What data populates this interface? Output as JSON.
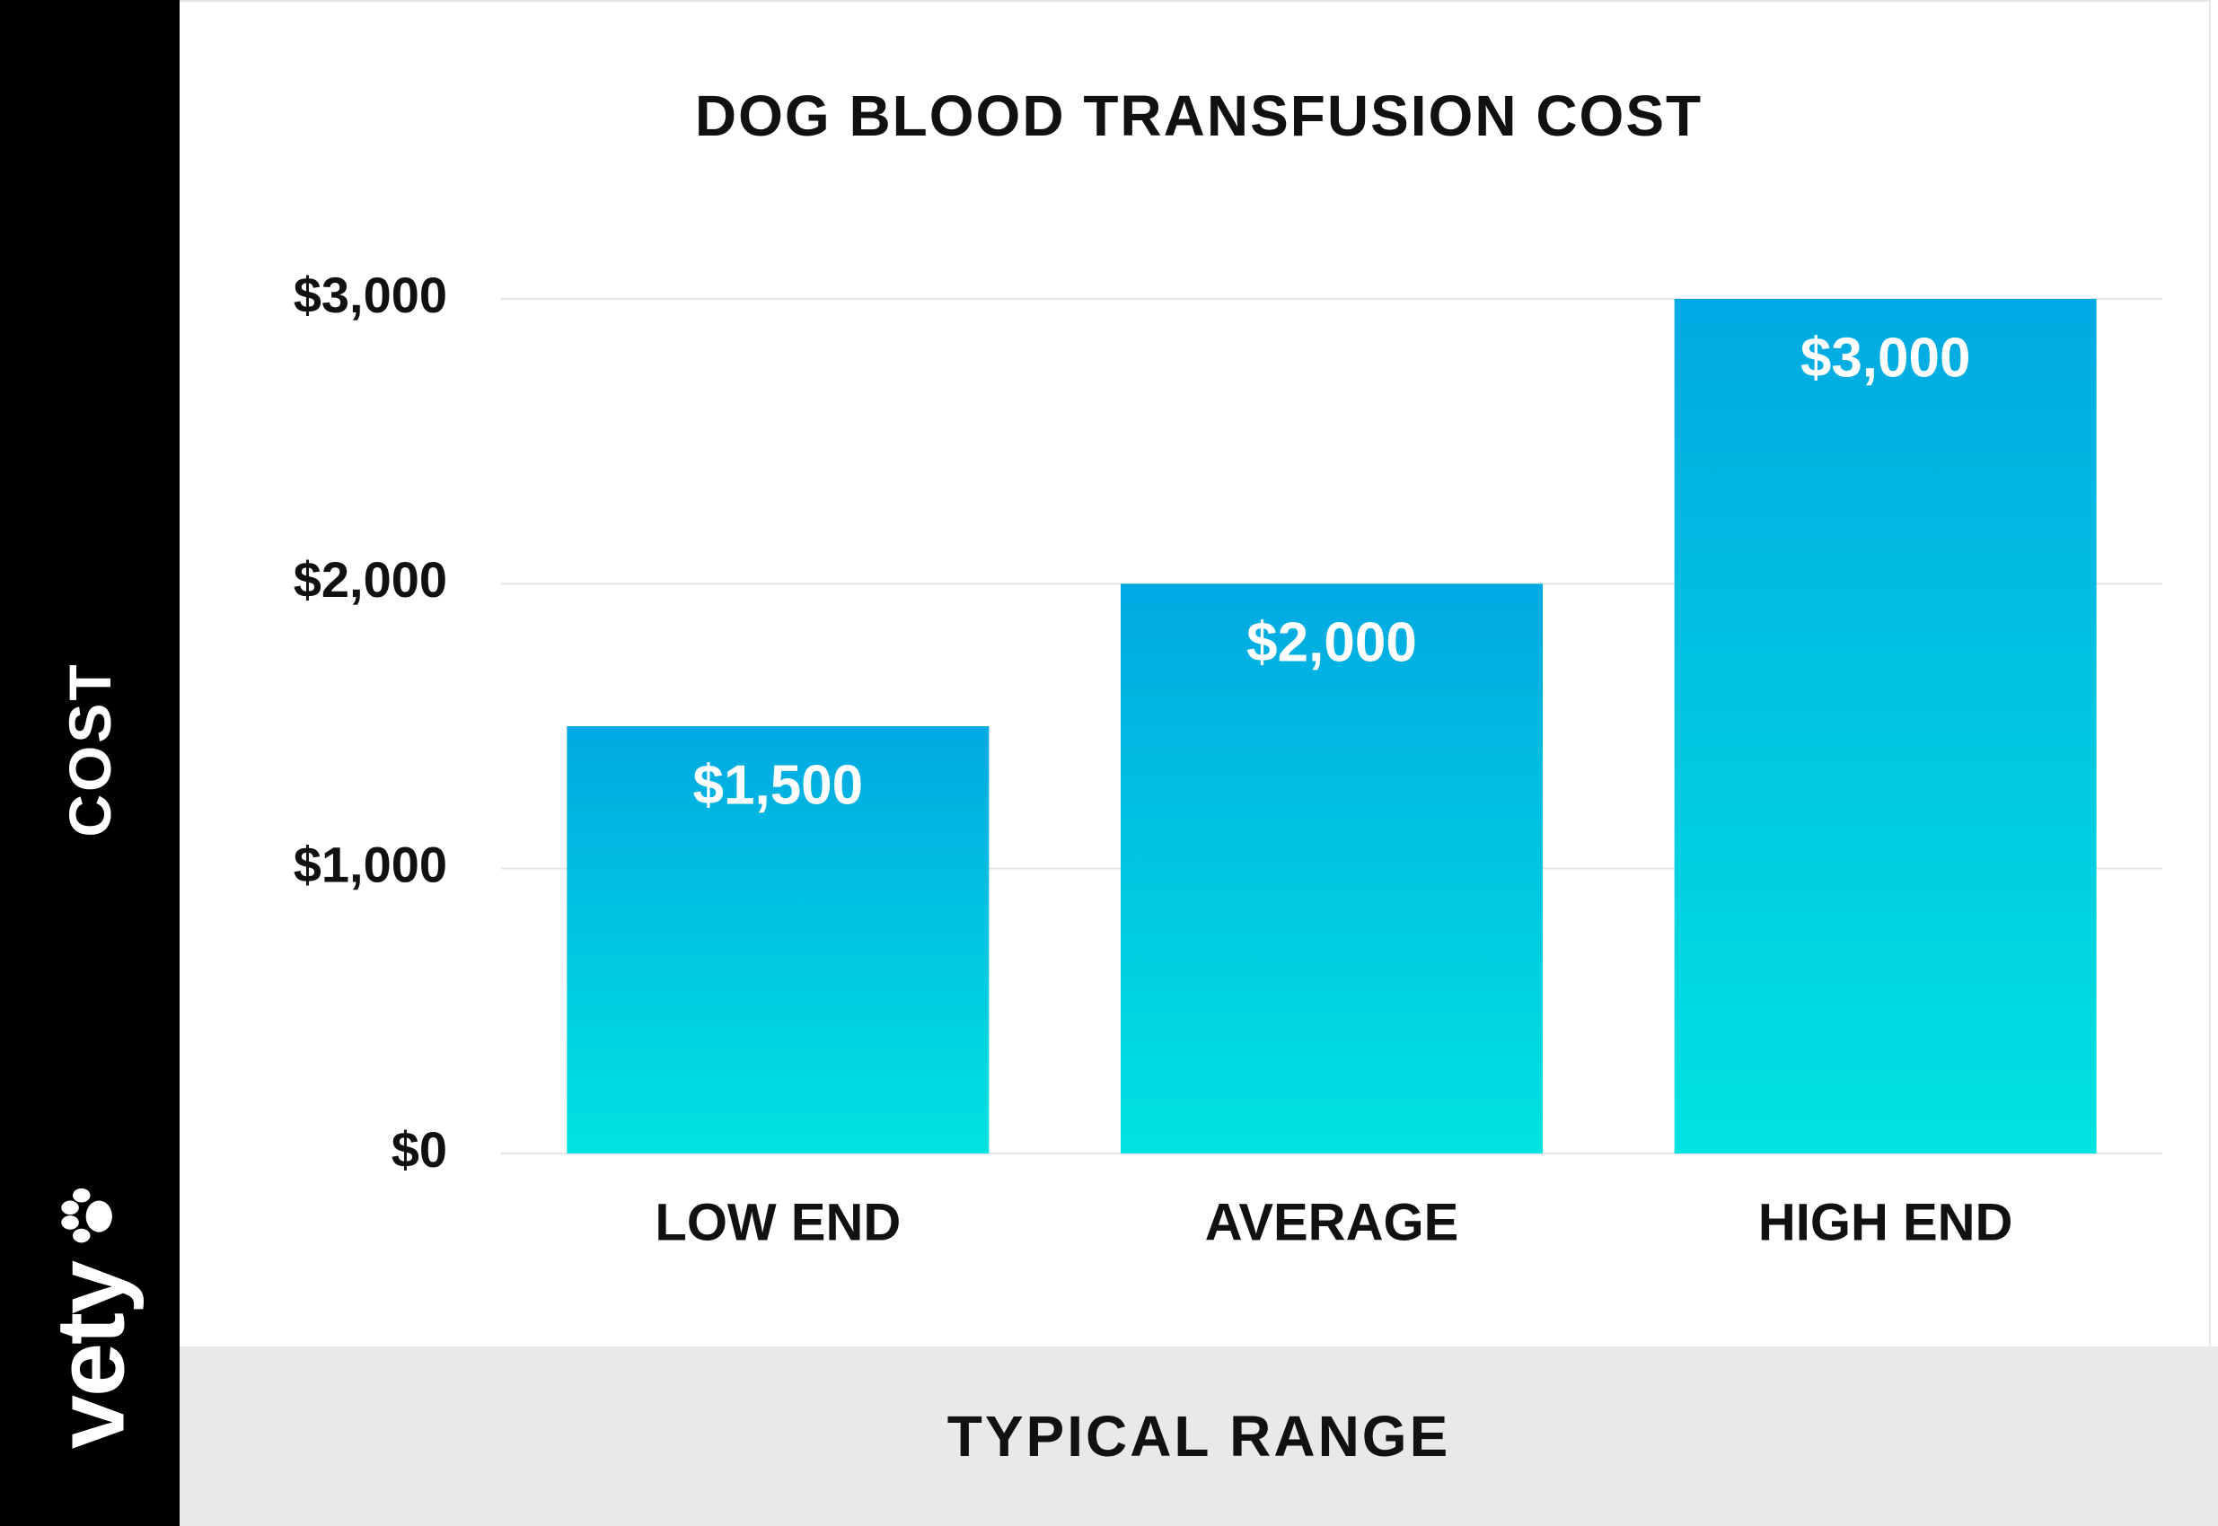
{
  "colors": {
    "sidebar": "#000000",
    "bar_top": "#00a9e2",
    "bar_bottom": "#00e3e0",
    "axis_band": "#e9e9e9",
    "gridline": "#e4e4e4"
  },
  "sidebar": {
    "axis_label": "COST",
    "logo_text": "vety",
    "logo_icon": "paw-icon"
  },
  "chart_data": {
    "type": "bar",
    "title": "DOG BLOOD TRANSFUSION COST",
    "xlabel": "TYPICAL RANGE",
    "ylabel": "COST",
    "categories": [
      "LOW END",
      "AVERAGE",
      "HIGH END"
    ],
    "values": [
      1500,
      2000,
      3000
    ],
    "value_labels": [
      "$1,500",
      "$2,000",
      "$3,000"
    ],
    "ylim": [
      0,
      3000
    ],
    "yticks": [
      0,
      1000,
      2000,
      3000
    ],
    "ytick_labels": [
      "$0",
      "$1,000",
      "$2,000",
      "$3,000"
    ],
    "grid": true,
    "legend": "none"
  }
}
